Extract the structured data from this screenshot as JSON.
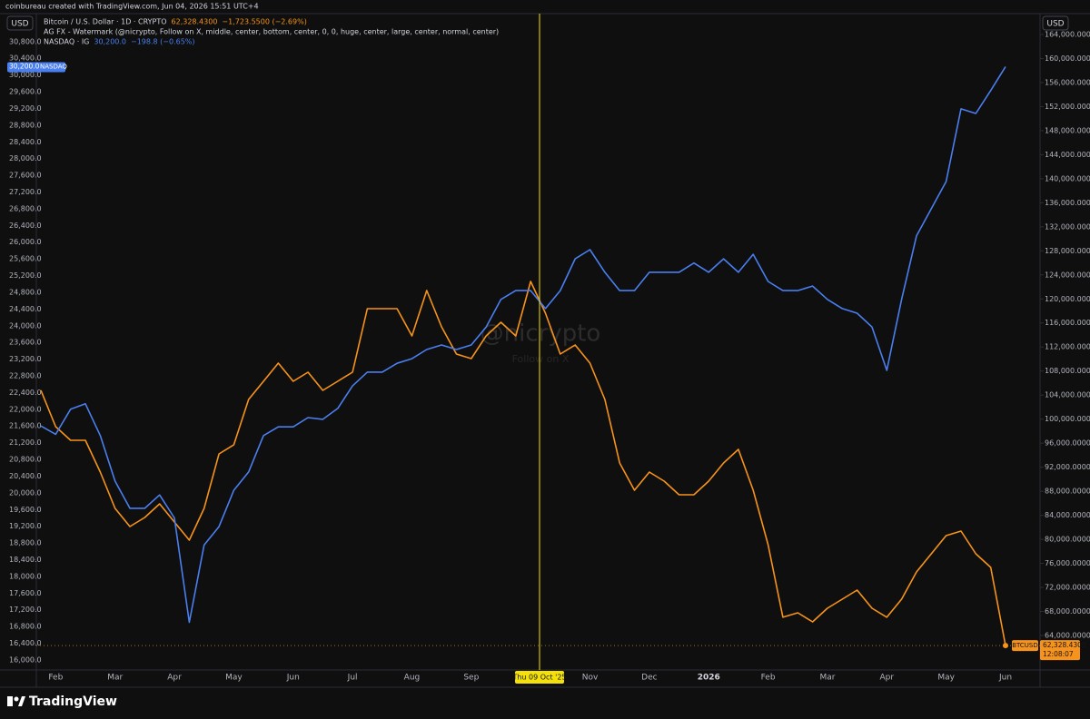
{
  "header": "coinbureau created with TradingView.com, Jun 04, 2026 15:51 UTC+4",
  "chart_data": {
    "type": "line",
    "categories": [
      null,
      "Feb",
      null,
      null,
      null,
      "Mar",
      null,
      null,
      null,
      "Apr",
      null,
      null,
      null,
      "May",
      null,
      null,
      null,
      "Jun",
      null,
      null,
      null,
      "Jul",
      null,
      null,
      null,
      "Aug",
      null,
      null,
      null,
      "Sep",
      null,
      null,
      null,
      null,
      null,
      null,
      null,
      "Nov",
      null,
      null,
      null,
      "Dec",
      null,
      null,
      null,
      "2026",
      null,
      null,
      null,
      "Feb",
      null,
      null,
      null,
      "Mar",
      null,
      null,
      null,
      "Apr",
      null,
      null,
      null,
      "May",
      null,
      null,
      null,
      "Jun"
    ],
    "series": [
      {
        "name": "Bitcoin / U.S. Dollar · 1D · CRYPTO",
        "color": "#f7931a",
        "axis": "y2",
        "last_label": "62,328.4300",
        "change": "−1,723.5500 (−2.69%)",
        "tag": "BTCUSD",
        "countdown": "12:08:07",
        "values": [
          104800,
          98740,
          96480,
          96480,
          91190,
          85150,
          82130,
          83640,
          85900,
          82880,
          79860,
          85150,
          94210,
          95720,
          103270,
          106300,
          109320,
          106300,
          107800,
          104780,
          106300,
          107800,
          118380,
          118380,
          118380,
          113850,
          121400,
          115360,
          110830,
          110070,
          113850,
          116110,
          113850,
          122910,
          117620,
          110830,
          112340,
          109320,
          103270,
          92700,
          88170,
          91190,
          89680,
          87410,
          87410,
          89680,
          92700,
          94970,
          88170,
          79110,
          67030,
          67780,
          66270,
          68530,
          70040,
          71550,
          68530,
          67030,
          70040,
          74570,
          77590,
          80610,
          81370,
          77590,
          75330,
          62328.43
        ]
      },
      {
        "name": "NASDAQ · IG",
        "color": "#4a7ff0",
        "axis": "y",
        "last_label": "30,200.0",
        "change": "−198.8 (−0.65%)",
        "tag": "NASDAQ",
        "values": [
          21600,
          21400,
          22000,
          22130,
          21370,
          20280,
          19630,
          19630,
          19950,
          19400,
          16900,
          18750,
          19190,
          20060,
          20500,
          21370,
          21580,
          21580,
          21800,
          21760,
          22020,
          22560,
          22890,
          22890,
          23100,
          23210,
          23430,
          23540,
          23430,
          23540,
          23970,
          24630,
          24840,
          24840,
          24410,
          24840,
          25600,
          25820,
          25280,
          24840,
          24840,
          25280,
          25280,
          25280,
          25500,
          25280,
          25600,
          25280,
          25710,
          25060,
          24840,
          24840,
          24950,
          24630,
          24410,
          24300,
          23970,
          22930,
          24630,
          26150,
          26800,
          27450,
          29190,
          29080,
          29630,
          30200
        ]
      }
    ],
    "ylim": [
      15760,
      31470
    ],
    "yticks": [
      {
        "value": 16000,
        "label": "16,000.0"
      },
      {
        "value": 16400,
        "label": "16,400.0"
      },
      {
        "value": 16800,
        "label": "16,800.0"
      },
      {
        "value": 17200,
        "label": "17,200.0"
      },
      {
        "value": 17600,
        "label": "17,600.0"
      },
      {
        "value": 18000,
        "label": "18,000.0"
      },
      {
        "value": 18400,
        "label": "18,400.0"
      },
      {
        "value": 18800,
        "label": "18,800.0"
      },
      {
        "value": 19200,
        "label": "19,200.0"
      },
      {
        "value": 19600,
        "label": "19,600.0"
      },
      {
        "value": 20000,
        "label": "20,000.0"
      },
      {
        "value": 20400,
        "label": "20,400.0"
      },
      {
        "value": 20800,
        "label": "20,800.0"
      },
      {
        "value": 21200,
        "label": "21,200.0"
      },
      {
        "value": 21600,
        "label": "21,600.0"
      },
      {
        "value": 22000,
        "label": "22,000.0"
      },
      {
        "value": 22400,
        "label": "22,400.0"
      },
      {
        "value": 22800,
        "label": "22,800.0"
      },
      {
        "value": 23200,
        "label": "23,200.0"
      },
      {
        "value": 23600,
        "label": "23,600.0"
      },
      {
        "value": 24000,
        "label": "24,000.0"
      },
      {
        "value": 24400,
        "label": "24,400.0"
      },
      {
        "value": 24800,
        "label": "24,800.0"
      },
      {
        "value": 25200,
        "label": "25,200.0"
      },
      {
        "value": 25600,
        "label": "25,600.0"
      },
      {
        "value": 26000,
        "label": "26,000.0"
      },
      {
        "value": 26400,
        "label": "26,400.0"
      },
      {
        "value": 26800,
        "label": "26,800.0"
      },
      {
        "value": 27200,
        "label": "27,200.0"
      },
      {
        "value": 27600,
        "label": "27,600.0"
      },
      {
        "value": 28000,
        "label": "28,000.0"
      },
      {
        "value": 28400,
        "label": "28,400.0"
      },
      {
        "value": 28800,
        "label": "28,800.0"
      },
      {
        "value": 29200,
        "label": "29,200.0"
      },
      {
        "value": 29600,
        "label": "29,600.0"
      },
      {
        "value": 30000,
        "label": "30,000.0"
      },
      {
        "value": 30400,
        "label": "30,400.0"
      },
      {
        "value": 30800,
        "label": "30,800.0"
      }
    ],
    "y2lim": [
      58260,
      167470
    ],
    "y2ticks": [
      {
        "value": 64000,
        "label": "64,000.0000"
      },
      {
        "value": 68000,
        "label": "68,000.0000"
      },
      {
        "value": 72000,
        "label": "72,000.0000"
      },
      {
        "value": 76000,
        "label": "76,000.0000"
      },
      {
        "value": 80000,
        "label": "80,000.0000"
      },
      {
        "value": 84000,
        "label": "84,000.0000"
      },
      {
        "value": 88000,
        "label": "88,000.0000"
      },
      {
        "value": 92000,
        "label": "92,000.0000"
      },
      {
        "value": 96000,
        "label": "96,000.0000"
      },
      {
        "value": 100000,
        "label": "100,000.0000"
      },
      {
        "value": 104000,
        "label": "104,000.0000"
      },
      {
        "value": 108000,
        "label": "108,000.0000"
      },
      {
        "value": 112000,
        "label": "112,000.0000"
      },
      {
        "value": 116000,
        "label": "116,000.0000"
      },
      {
        "value": 120000,
        "label": "120,000.0000"
      },
      {
        "value": 124000,
        "label": "124,000.0000"
      },
      {
        "value": 128000,
        "label": "128,000.0000"
      },
      {
        "value": 132000,
        "label": "132,000.0000"
      },
      {
        "value": 136000,
        "label": "136,000.0000"
      },
      {
        "value": 140000,
        "label": "140,000.0000"
      },
      {
        "value": 144000,
        "label": "144,000.0000"
      },
      {
        "value": 148000,
        "label": "148,000.0000"
      },
      {
        "value": 152000,
        "label": "152,000.0000"
      },
      {
        "value": 156000,
        "label": "156,000.0000"
      },
      {
        "value": 160000,
        "label": "160,000.0000"
      },
      {
        "value": 164000,
        "label": "164,000.0000"
      }
    ],
    "grid": false,
    "y_unit": "USD",
    "y2_unit": "USD",
    "crosshair_label": "Thu 09 Oct '25",
    "annotation": "AG FX - Watermark (@nicrypto, Follow on X, middle, center, bottom, center, 0, 0, huge, center, large, center, normal, center)",
    "watermark": "@nicrypto",
    "watermark_sub": "Follow on X"
  },
  "footer": {
    "brand": "TradingView"
  }
}
